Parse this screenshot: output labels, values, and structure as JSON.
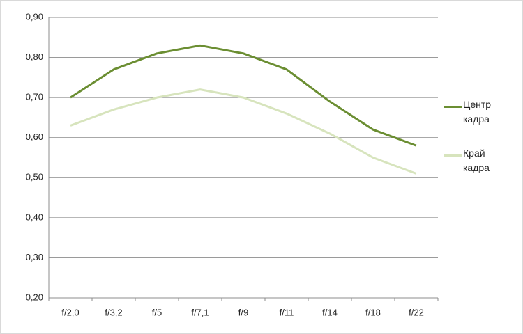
{
  "chart_data": {
    "type": "line",
    "categories": [
      "f/2,0",
      "f/3,2",
      "f/5",
      "f/7,1",
      "f/9",
      "f/11",
      "f/14",
      "f/18",
      "f/22"
    ],
    "series": [
      {
        "name": "Центр кадра",
        "color": "#6b8e32",
        "values": [
          0.7,
          0.77,
          0.81,
          0.83,
          0.81,
          0.77,
          0.69,
          0.62,
          0.58
        ]
      },
      {
        "name": "Край кадра",
        "color": "#d7e4bd",
        "values": [
          0.63,
          0.67,
          0.7,
          0.72,
          0.7,
          0.66,
          0.61,
          0.55,
          0.51
        ]
      }
    ],
    "ylim": [
      0.2,
      0.9
    ],
    "yticks": [
      {
        "value": 0.2,
        "label": "0,20"
      },
      {
        "value": 0.3,
        "label": "0,30"
      },
      {
        "value": 0.4,
        "label": "0,40"
      },
      {
        "value": 0.5,
        "label": "0,50"
      },
      {
        "value": 0.6,
        "label": "0,60"
      },
      {
        "value": 0.7,
        "label": "0,70"
      },
      {
        "value": 0.8,
        "label": "0,80"
      },
      {
        "value": 0.9,
        "label": "0,90"
      }
    ],
    "grid": true,
    "legend": "right"
  }
}
